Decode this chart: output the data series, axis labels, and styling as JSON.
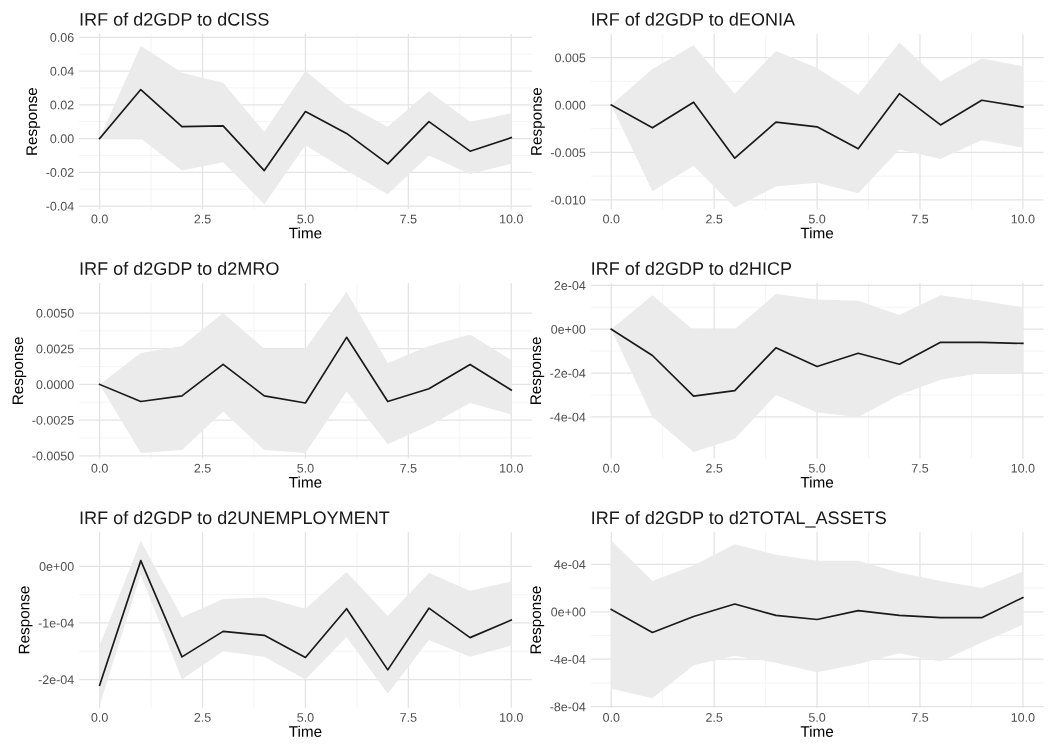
{
  "chart_data": [
    {
      "type": "line",
      "title": "IRF of d2GDP to dCISS",
      "xlabel": "Time",
      "ylabel": "Response",
      "x": [
        0,
        1,
        2,
        3,
        4,
        5,
        6,
        7,
        8,
        9,
        10
      ],
      "xlim": [
        -0.5,
        10.5
      ],
      "xticks": [
        {
          "value": 0,
          "label": "0.0"
        },
        {
          "value": 2.5,
          "label": "2.5"
        },
        {
          "value": 5,
          "label": "5.0"
        },
        {
          "value": 7.5,
          "label": "7.5"
        },
        {
          "value": 10,
          "label": "10.0"
        }
      ],
      "ylim": [
        -0.042,
        0.062
      ],
      "yticks": [
        {
          "value": -0.04,
          "label": "-0.04"
        },
        {
          "value": -0.02,
          "label": "-0.02"
        },
        {
          "value": 0,
          "label": "0.00"
        },
        {
          "value": 0.02,
          "label": "0.02"
        },
        {
          "value": 0.04,
          "label": "0.04"
        },
        {
          "value": 0.06,
          "label": "0.06"
        }
      ],
      "grid": true,
      "series": [
        {
          "color": "#1a1a1a",
          "values": [
            0,
            0.029,
            0.007,
            0.0075,
            -0.019,
            0.016,
            0.003,
            -0.015,
            0.01,
            -0.0075,
            0.0005
          ],
          "upper": [
            0,
            0.055,
            0.039,
            0.033,
            0.004,
            0.04,
            0.02,
            0.007,
            0.028,
            0.01,
            0.015
          ],
          "lower": [
            0,
            0.0,
            -0.019,
            -0.014,
            -0.039,
            -0.004,
            -0.019,
            -0.033,
            -0.01,
            -0.021,
            -0.015
          ]
        }
      ]
    },
    {
      "type": "line",
      "title": "IRF of d2GDP to dEONIA",
      "xlabel": "Time",
      "ylabel": "Response",
      "x": [
        0,
        1,
        2,
        3,
        4,
        5,
        6,
        7,
        8,
        9,
        10
      ],
      "xlim": [
        -0.5,
        10.5
      ],
      "xticks": [
        {
          "value": 0,
          "label": "0.0"
        },
        {
          "value": 2.5,
          "label": "2.5"
        },
        {
          "value": 5,
          "label": "5.0"
        },
        {
          "value": 7.5,
          "label": "7.5"
        },
        {
          "value": 10,
          "label": "10.0"
        }
      ],
      "ylim": [
        -0.011,
        0.0075
      ],
      "yticks": [
        {
          "value": -0.01,
          "label": "-0.010"
        },
        {
          "value": -0.005,
          "label": "-0.005"
        },
        {
          "value": 0,
          "label": "0.000"
        },
        {
          "value": 0.005,
          "label": "0.005"
        }
      ],
      "grid": true,
      "series": [
        {
          "color": "#1a1a1a",
          "values": [
            0,
            -0.0024,
            0.0003,
            -0.0056,
            -0.0018,
            -0.0023,
            -0.0046,
            0.0012,
            -0.0021,
            0.0005,
            -0.0002
          ],
          "upper": [
            0,
            0.0038,
            0.0063,
            0.0012,
            0.0057,
            0.0039,
            0.0011,
            0.0066,
            0.0025,
            0.0049,
            0.0041
          ],
          "lower": [
            0,
            -0.0091,
            -0.0064,
            -0.0108,
            -0.0086,
            -0.0082,
            -0.0093,
            -0.0047,
            -0.0057,
            -0.0037,
            -0.0045
          ]
        }
      ]
    },
    {
      "type": "line",
      "title": "IRF of d2GDP to d2MRO",
      "xlabel": "Time",
      "ylabel": "Response",
      "x": [
        0,
        1,
        2,
        3,
        4,
        5,
        6,
        7,
        8,
        9,
        10
      ],
      "xlim": [
        -0.5,
        10.5
      ],
      "xticks": [
        {
          "value": 0,
          "label": "0.0"
        },
        {
          "value": 2.5,
          "label": "2.5"
        },
        {
          "value": 5,
          "label": "5.0"
        },
        {
          "value": 7.5,
          "label": "7.5"
        },
        {
          "value": 10,
          "label": "10.0"
        }
      ],
      "ylim": [
        -0.0052,
        0.0071
      ],
      "yticks": [
        {
          "value": -0.005,
          "label": "-0.0050"
        },
        {
          "value": -0.0025,
          "label": "-0.0025"
        },
        {
          "value": 0,
          "label": "0.0000"
        },
        {
          "value": 0.0025,
          "label": "0.0025"
        },
        {
          "value": 0.005,
          "label": "0.0050"
        }
      ],
      "grid": true,
      "series": [
        {
          "color": "#1a1a1a",
          "values": [
            0,
            -0.0012,
            -0.0008,
            0.0014,
            -0.0008,
            -0.0013,
            0.0033,
            -0.0012,
            -0.0003,
            0.0014,
            -0.0004
          ],
          "upper": [
            0,
            0.0022,
            0.0027,
            0.005,
            0.0025,
            0.0025,
            0.0065,
            0.0015,
            0.0027,
            0.0035,
            0.0017
          ],
          "lower": [
            0,
            -0.0048,
            -0.0046,
            -0.0019,
            -0.0046,
            -0.0048,
            -0.0005,
            -0.0042,
            -0.0029,
            -0.0013,
            -0.0021
          ]
        }
      ]
    },
    {
      "type": "line",
      "title": "IRF of d2GDP to d2HICP",
      "xlabel": "Time",
      "ylabel": "Response",
      "x": [
        0,
        1,
        2,
        3,
        4,
        5,
        6,
        7,
        8,
        9,
        10
      ],
      "xlim": [
        -0.5,
        10.5
      ],
      "xticks": [
        {
          "value": 0,
          "label": "0.0"
        },
        {
          "value": 2.5,
          "label": "2.5"
        },
        {
          "value": 5,
          "label": "5.0"
        },
        {
          "value": 7.5,
          "label": "7.5"
        },
        {
          "value": 10,
          "label": "10.0"
        }
      ],
      "ylim": [
        -0.00059,
        0.00021
      ],
      "yticks": [
        {
          "value": -0.0004,
          "label": "-4e-04"
        },
        {
          "value": -0.0002,
          "label": "-2e-04"
        },
        {
          "value": 0,
          "label": "0e+00"
        },
        {
          "value": 0.0002,
          "label": "2e-04"
        }
      ],
      "grid": true,
      "series": [
        {
          "color": "#1a1a1a",
          "values": [
            0,
            -0.00012,
            -0.000305,
            -0.00028,
            -8.5e-05,
            -0.00017,
            -0.00011,
            -0.00016,
            -6e-05,
            -6e-05,
            -6.5e-05
          ],
          "upper": [
            0,
            0.000155,
            -5e-06,
            0,
            0.00016,
            0.000135,
            0.00013,
            6.5e-05,
            0.000155,
            0.00013,
            0.0001
          ],
          "lower": [
            0,
            -0.0004,
            -0.00056,
            -0.0005,
            -0.0003,
            -0.00038,
            -0.0004,
            -0.0003,
            -0.00023,
            -0.0002,
            -0.0002
          ]
        }
      ]
    },
    {
      "type": "line",
      "title": "IRF of d2GDP to d2UNEMPLOYMENT",
      "xlabel": "Time",
      "ylabel": "Response",
      "x": [
        0,
        1,
        2,
        3,
        4,
        5,
        6,
        7,
        8,
        9,
        10
      ],
      "xlim": [
        -0.5,
        10.5
      ],
      "xticks": [
        {
          "value": 0,
          "label": "0.0"
        },
        {
          "value": 2.5,
          "label": "2.5"
        },
        {
          "value": 5,
          "label": "5.0"
        },
        {
          "value": 7.5,
          "label": "7.5"
        },
        {
          "value": 10,
          "label": "10.0"
        }
      ],
      "ylim": [
        -0.00025,
        6e-05
      ],
      "yticks": [
        {
          "value": -0.0002,
          "label": "-2e-04"
        },
        {
          "value": -0.0001,
          "label": "-1e-04"
        },
        {
          "value": 0,
          "label": "0e+00"
        }
      ],
      "grid": true,
      "series": [
        {
          "color": "#1a1a1a",
          "values": [
            -0.00021,
            1e-05,
            -0.00016,
            -0.000115,
            -0.000122,
            -0.000161,
            -7.5e-05,
            -0.000183,
            -7.4e-05,
            -0.000126,
            -9.5e-05
          ],
          "upper": [
            -0.00014,
            4.5e-05,
            -9e-05,
            -5.8e-05,
            -5.5e-05,
            -7.5e-05,
            -1e-05,
            -8.8e-05,
            -1.2e-05,
            -4.3e-05,
            -2.7e-05
          ],
          "lower": [
            -0.000245,
            -1.5e-05,
            -0.0002,
            -0.00015,
            -0.00016,
            -0.0002,
            -0.000125,
            -0.000225,
            -0.00013,
            -0.00016,
            -0.00014
          ]
        }
      ]
    },
    {
      "type": "line",
      "title": "IRF of d2GDP to d2TOTAL_ASSETS",
      "xlabel": "Time",
      "ylabel": "Response",
      "x": [
        0,
        1,
        2,
        3,
        4,
        5,
        6,
        7,
        8,
        9,
        10
      ],
      "xlim": [
        -0.5,
        10.5
      ],
      "xticks": [
        {
          "value": 0,
          "label": "0.0"
        },
        {
          "value": 2.5,
          "label": "2.5"
        },
        {
          "value": 5,
          "label": "5.0"
        },
        {
          "value": 7.5,
          "label": "7.5"
        },
        {
          "value": 10,
          "label": "10.0"
        }
      ],
      "ylim": [
        -0.00081,
        0.00067
      ],
      "yticks": [
        {
          "value": -0.0008,
          "label": "-8e-04"
        },
        {
          "value": -0.0004,
          "label": "-4e-04"
        },
        {
          "value": 0,
          "label": "0e+00"
        },
        {
          "value": 0.0004,
          "label": "4e-04"
        }
      ],
      "grid": true,
      "series": [
        {
          "color": "#1a1a1a",
          "values": [
            2e-05,
            -0.000175,
            -4e-05,
            6.5e-05,
            -3e-05,
            -6.5e-05,
            1e-05,
            -3e-05,
            -5e-05,
            -5e-05,
            0.00012
          ],
          "upper": [
            0.0006,
            0.00026,
            0.00039,
            0.00057,
            0.00048,
            0.00043,
            0.00043,
            0.00033,
            0.00026,
            0.0002,
            0.00034
          ],
          "lower": [
            -0.00065,
            -0.00073,
            -0.00045,
            -0.00037,
            -0.00043,
            -0.00051,
            -0.00044,
            -0.00035,
            -0.00042,
            -0.00026,
            -0.00011
          ]
        }
      ]
    }
  ]
}
